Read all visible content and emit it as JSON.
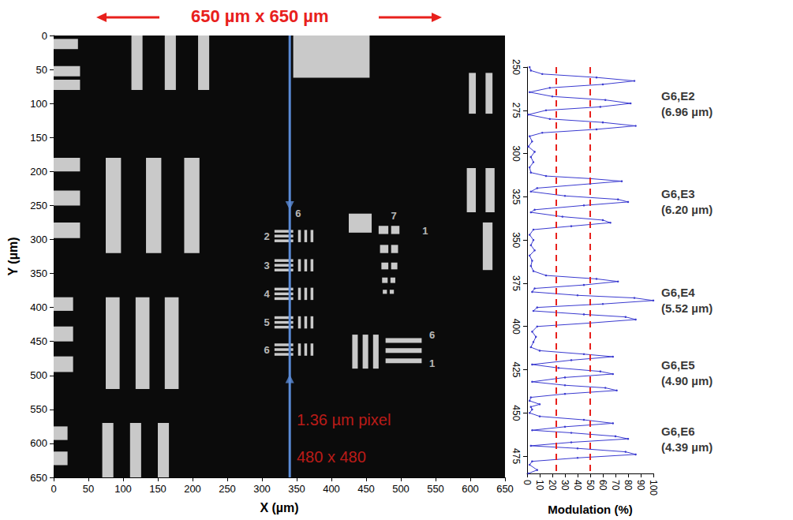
{
  "chart_data": [
    {
      "type": "image",
      "title": "650 µm x 650 µm",
      "xlabel": "X (µm)",
      "ylabel": "Y (µm)",
      "xlim": [
        0,
        650
      ],
      "ylim": [
        650,
        0
      ],
      "xticks": [
        0,
        50,
        100,
        150,
        200,
        250,
        300,
        350,
        400,
        450,
        500,
        550,
        600,
        650
      ],
      "yticks": [
        0,
        50,
        100,
        150,
        200,
        250,
        300,
        350,
        400,
        450,
        500,
        550,
        600,
        650
      ],
      "bright_regions": [
        [
          0,
          5,
          35,
          20
        ],
        [
          0,
          45,
          38,
          60
        ],
        [
          0,
          65,
          38,
          80
        ],
        [
          112,
          0,
          128,
          80
        ],
        [
          160,
          0,
          176,
          80
        ],
        [
          208,
          0,
          224,
          80
        ],
        [
          345,
          0,
          455,
          62
        ],
        [
          598,
          55,
          608,
          115
        ],
        [
          622,
          55,
          632,
          115
        ],
        [
          0,
          180,
          38,
          200
        ],
        [
          0,
          228,
          38,
          250
        ],
        [
          0,
          275,
          38,
          298
        ],
        [
          75,
          180,
          97,
          320
        ],
        [
          133,
          180,
          155,
          320
        ],
        [
          188,
          180,
          210,
          320
        ],
        [
          595,
          195,
          608,
          260
        ],
        [
          622,
          195,
          635,
          260
        ],
        [
          618,
          275,
          632,
          345
        ],
        [
          75,
          385,
          95,
          520
        ],
        [
          118,
          385,
          138,
          520
        ],
        [
          160,
          385,
          180,
          520
        ],
        [
          0,
          385,
          28,
          405
        ],
        [
          0,
          428,
          28,
          450
        ],
        [
          0,
          472,
          28,
          495
        ],
        [
          70,
          570,
          86,
          650
        ],
        [
          110,
          570,
          126,
          650
        ],
        [
          150,
          570,
          166,
          650
        ],
        [
          0,
          575,
          20,
          595
        ],
        [
          0,
          612,
          20,
          632
        ],
        [
          318,
          286,
          345,
          290
        ],
        [
          318,
          293,
          345,
          297
        ],
        [
          318,
          300,
          345,
          304
        ],
        [
          352,
          286,
          356,
          304
        ],
        [
          361,
          286,
          365,
          304
        ],
        [
          370,
          286,
          374,
          304
        ],
        [
          318,
          329,
          345,
          333
        ],
        [
          318,
          336,
          345,
          340
        ],
        [
          318,
          343,
          345,
          347
        ],
        [
          352,
          329,
          356,
          347
        ],
        [
          361,
          329,
          365,
          347
        ],
        [
          370,
          329,
          374,
          347
        ],
        [
          318,
          371,
          345,
          375
        ],
        [
          318,
          378,
          345,
          382
        ],
        [
          318,
          385,
          345,
          389
        ],
        [
          352,
          371,
          356,
          389
        ],
        [
          361,
          371,
          365,
          389
        ],
        [
          370,
          371,
          374,
          389
        ],
        [
          318,
          413,
          345,
          417
        ],
        [
          318,
          420,
          345,
          424
        ],
        [
          318,
          427,
          345,
          431
        ],
        [
          352,
          413,
          356,
          431
        ],
        [
          361,
          413,
          365,
          431
        ],
        [
          370,
          413,
          374,
          431
        ],
        [
          318,
          453,
          345,
          457
        ],
        [
          318,
          460,
          345,
          464
        ],
        [
          318,
          467,
          345,
          471
        ],
        [
          352,
          453,
          356,
          471
        ],
        [
          361,
          453,
          365,
          471
        ],
        [
          370,
          453,
          374,
          471
        ],
        [
          425,
          262,
          458,
          290
        ],
        [
          468,
          280,
          482,
          292
        ],
        [
          486,
          280,
          498,
          292
        ],
        [
          470,
          308,
          482,
          320
        ],
        [
          486,
          308,
          496,
          320
        ],
        [
          472,
          334,
          482,
          344
        ],
        [
          486,
          334,
          495,
          344
        ],
        [
          473,
          356,
          481,
          364
        ],
        [
          485,
          356,
          492,
          364
        ],
        [
          474,
          374,
          480,
          380
        ],
        [
          484,
          374,
          490,
          380
        ],
        [
          430,
          440,
          438,
          490
        ],
        [
          445,
          440,
          453,
          490
        ],
        [
          460,
          440,
          468,
          490
        ],
        [
          478,
          445,
          530,
          452
        ],
        [
          478,
          460,
          530,
          467
        ],
        [
          478,
          475,
          530,
          482
        ]
      ],
      "target_labels": [
        {
          "text": "6",
          "x": 352,
          "y": 262
        },
        {
          "text": "7",
          "x": 490,
          "y": 265
        },
        {
          "text": "2",
          "x": 307,
          "y": 295
        },
        {
          "text": "3",
          "x": 307,
          "y": 338
        },
        {
          "text": "4",
          "x": 307,
          "y": 380
        },
        {
          "text": "5",
          "x": 307,
          "y": 422
        },
        {
          "text": "6",
          "x": 307,
          "y": 462
        },
        {
          "text": "1",
          "x": 535,
          "y": 287
        },
        {
          "text": "6",
          "x": 545,
          "y": 440
        },
        {
          "text": "1",
          "x": 545,
          "y": 482
        }
      ],
      "annotations": [
        {
          "text": "1.36 µm pixel",
          "x": 350,
          "y": 565
        },
        {
          "text": "480 x 480",
          "x": 350,
          "y": 620
        }
      ],
      "profile_line": {
        "x": 340,
        "y": [
          0,
          650
        ],
        "arrows": [
          250,
          505
        ]
      }
    },
    {
      "type": "line",
      "xlabel": "Modulation (%)",
      "xlim": [
        0,
        100
      ],
      "xticks": [
        0,
        10,
        20,
        30,
        40,
        50,
        60,
        70,
        80,
        90,
        100
      ],
      "ylim": [
        485,
        250
      ],
      "yticks": [
        250,
        275,
        300,
        325,
        350,
        375,
        400,
        425,
        450,
        475
      ],
      "orientation": "horizontal",
      "series": [
        {
          "color": "#3a3ad0",
          "marker": "dot",
          "y": [
            250,
            252,
            254,
            256,
            258,
            260,
            262,
            264.5,
            267,
            269,
            271,
            273,
            275,
            277.5,
            280,
            282,
            284,
            286,
            288,
            290,
            293,
            296,
            299,
            302,
            305,
            308,
            311,
            313,
            314.5,
            316,
            317.5,
            320,
            322,
            324.5,
            326.5,
            328,
            330,
            332.5,
            334,
            336.5,
            338.5,
            340,
            342,
            344,
            347,
            350,
            353,
            356,
            359,
            362,
            365,
            368,
            370.5,
            372.5,
            374,
            376,
            378,
            380,
            382,
            383.5,
            385,
            387,
            389,
            391,
            393,
            394.5,
            396,
            398,
            400,
            403,
            406,
            409,
            412,
            414,
            416,
            417.5,
            419.5,
            422,
            424,
            426,
            427.5,
            429.5,
            432,
            434,
            435.5,
            437,
            439,
            441,
            443,
            445,
            446.5,
            448,
            450,
            452,
            454,
            456,
            458,
            460,
            461.5,
            463.5,
            465,
            467,
            469,
            470.5,
            472.5,
            474,
            476,
            478,
            480,
            483,
            485
          ],
          "values": [
            2,
            3,
            12,
            55,
            85,
            60,
            18,
            2,
            20,
            62,
            82,
            58,
            15,
            1,
            18,
            60,
            86,
            55,
            12,
            2,
            4,
            1,
            6,
            3,
            5,
            2,
            3,
            15,
            50,
            75,
            50,
            8,
            3,
            30,
            72,
            80,
            45,
            6,
            3,
            28,
            60,
            66,
            35,
            5,
            2,
            5,
            3,
            6,
            2,
            4,
            3,
            5,
            15,
            55,
            72,
            45,
            6,
            4,
            40,
            85,
            100,
            60,
            8,
            5,
            45,
            78,
            86,
            50,
            8,
            4,
            7,
            5,
            3,
            10,
            45,
            68,
            35,
            4,
            25,
            58,
            68,
            30,
            4,
            30,
            62,
            71,
            30,
            3,
            2,
            10,
            3,
            4,
            2,
            10,
            45,
            68,
            30,
            4,
            35,
            70,
            80,
            35,
            3,
            40,
            78,
            86,
            40,
            4,
            2,
            8,
            1
          ]
        }
      ],
      "reference_lines": {
        "values": [
          23,
          50
        ],
        "line_style": "dashed"
      },
      "group_labels": [
        {
          "text": "G6,E2",
          "subtext": "(6.96 µm)",
          "y": 271
        },
        {
          "text": "G6,E3",
          "subtext": "(6.20 µm)",
          "y": 328
        },
        {
          "text": "G6,E4",
          "subtext": "(5.52 µm)",
          "y": 385
        },
        {
          "text": "G6,E5",
          "subtext": "(4.90 µm)",
          "y": 427
        },
        {
          "text": "G6,E6",
          "subtext": "(4.39 µm)",
          "y": 465
        }
      ]
    }
  ]
}
